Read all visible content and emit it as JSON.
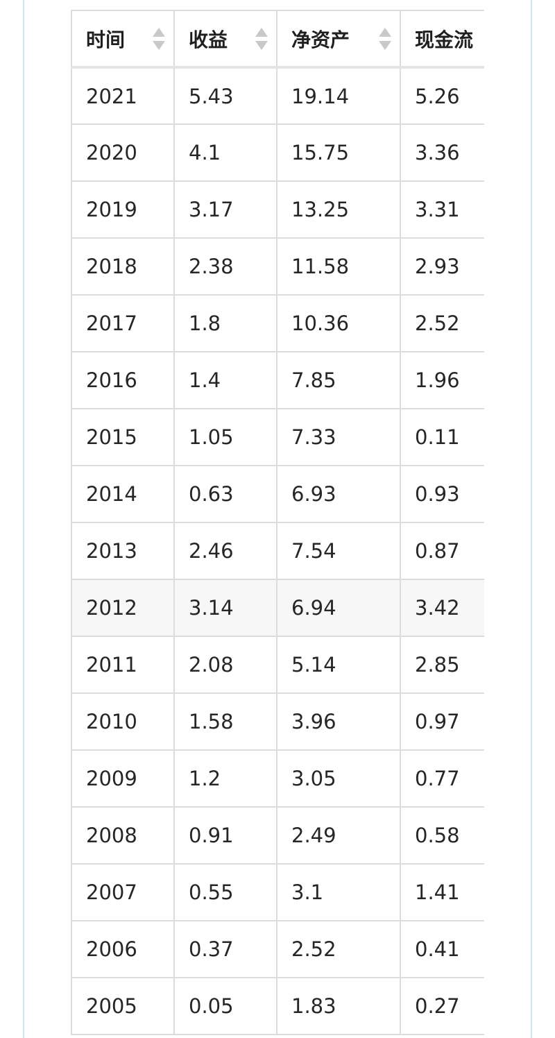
{
  "table": {
    "headers": [
      {
        "label": "时间",
        "sortable": true
      },
      {
        "label": "收益",
        "sortable": true
      },
      {
        "label": "净资产",
        "sortable": true
      },
      {
        "label": "现金流",
        "sortable": false
      }
    ],
    "rows": [
      [
        "2021",
        "5.43",
        "19.14",
        "5.26"
      ],
      [
        "2020",
        "4.1",
        "15.75",
        "3.36"
      ],
      [
        "2019",
        "3.17",
        "13.25",
        "3.31"
      ],
      [
        "2018",
        "2.38",
        "11.58",
        "2.93"
      ],
      [
        "2017",
        "1.8",
        "10.36",
        "2.52"
      ],
      [
        "2016",
        "1.4",
        "7.85",
        "1.96"
      ],
      [
        "2015",
        "1.05",
        "7.33",
        "0.11"
      ],
      [
        "2014",
        "0.63",
        "6.93",
        "0.93"
      ],
      [
        "2013",
        "2.46",
        "7.54",
        "0.87"
      ],
      [
        "2012",
        "3.14",
        "6.94",
        "3.42"
      ],
      [
        "2011",
        "2.08",
        "5.14",
        "2.85"
      ],
      [
        "2010",
        "1.58",
        "3.96",
        "0.97"
      ],
      [
        "2009",
        "1.2",
        "3.05",
        "0.77"
      ],
      [
        "2008",
        "0.91",
        "2.49",
        "0.58"
      ],
      [
        "2007",
        "0.55",
        "3.1",
        "1.41"
      ],
      [
        "2006",
        "0.37",
        "2.52",
        "0.41"
      ],
      [
        "2005",
        "0.05",
        "1.83",
        "0.27"
      ]
    ],
    "highlighted_row": "2012"
  },
  "colors": {
    "grid": "#dcdcdc",
    "frame": "#cfe3f0",
    "highlight_row": "#f7f7f7",
    "sort_icon": "#c9c9c9"
  },
  "icons": {
    "sort": "sort-icon"
  }
}
